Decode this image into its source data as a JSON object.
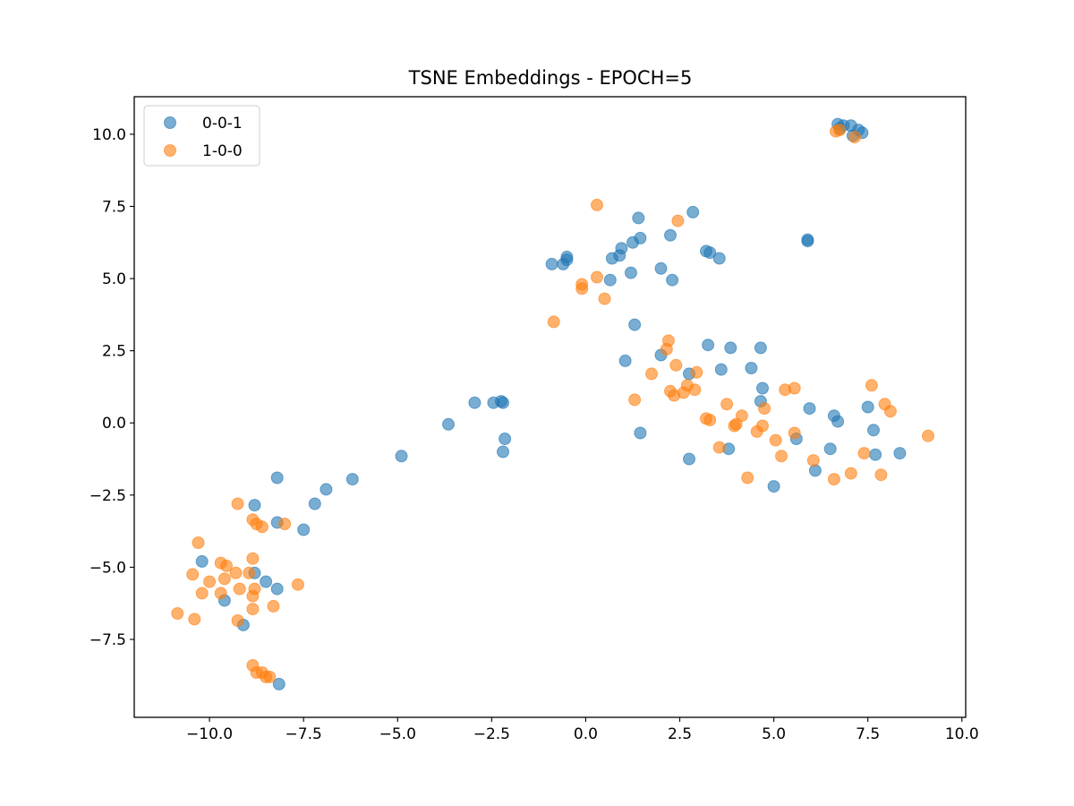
{
  "chart_data": {
    "type": "scatter",
    "title": "TSNE Embeddings - EPOCH=5",
    "xlabel": "",
    "ylabel": "",
    "xlim": [
      -12,
      10.1
    ],
    "ylim": [
      -10.2,
      11.3
    ],
    "xticks": [
      -10,
      -7.5,
      -5,
      -2.5,
      0,
      2.5,
      5,
      7.5,
      10
    ],
    "xtick_labels": [
      "−10.0",
      "−7.5",
      "−5.0",
      "−2.5",
      "0.0",
      "2.5",
      "5.0",
      "7.5",
      "10.0"
    ],
    "yticks": [
      -7.5,
      -5,
      -2.5,
      0,
      2.5,
      5,
      7.5,
      10
    ],
    "ytick_labels": [
      "−7.5",
      "−5.0",
      "−2.5",
      "0.0",
      "2.5",
      "5.0",
      "7.5",
      "10.0"
    ],
    "grid": false,
    "legend_position": "top-left",
    "series": [
      {
        "name": "0-0-1",
        "color": "#1f77b4",
        "points": [
          [
            -10.2,
            -4.8
          ],
          [
            -9.6,
            -6.15
          ],
          [
            -9.1,
            -7.0
          ],
          [
            -8.8,
            -5.2
          ],
          [
            -8.5,
            -5.5
          ],
          [
            -8.2,
            -5.75
          ],
          [
            -8.8,
            -2.85
          ],
          [
            -8.2,
            -1.9
          ],
          [
            -8.2,
            -3.45
          ],
          [
            -8.15,
            -9.05
          ],
          [
            -7.5,
            -3.7
          ],
          [
            -7.2,
            -2.8
          ],
          [
            -6.9,
            -2.3
          ],
          [
            -6.2,
            -1.95
          ],
          [
            -4.9,
            -1.15
          ],
          [
            -3.65,
            -0.05
          ],
          [
            -2.95,
            0.7
          ],
          [
            -2.45,
            0.7
          ],
          [
            -2.25,
            0.75
          ],
          [
            -2.2,
            0.7
          ],
          [
            -2.2,
            -1.0
          ],
          [
            -2.15,
            -0.55
          ],
          [
            -0.9,
            5.5
          ],
          [
            -0.6,
            5.5
          ],
          [
            -0.5,
            5.65
          ],
          [
            -0.5,
            5.75
          ],
          [
            0.65,
            4.95
          ],
          [
            0.7,
            5.7
          ],
          [
            0.9,
            5.8
          ],
          [
            0.95,
            6.05
          ],
          [
            1.2,
            5.2
          ],
          [
            1.25,
            6.25
          ],
          [
            1.4,
            7.1
          ],
          [
            1.45,
            6.4
          ],
          [
            1.3,
            3.4
          ],
          [
            1.05,
            2.15
          ],
          [
            1.45,
            -0.35
          ],
          [
            2.0,
            5.35
          ],
          [
            2.25,
            6.5
          ],
          [
            2.3,
            4.95
          ],
          [
            2.85,
            7.3
          ],
          [
            3.2,
            5.95
          ],
          [
            3.3,
            5.9
          ],
          [
            3.55,
            5.7
          ],
          [
            2.0,
            2.35
          ],
          [
            2.75,
            1.7
          ],
          [
            3.25,
            2.7
          ],
          [
            3.6,
            1.85
          ],
          [
            3.85,
            2.6
          ],
          [
            3.8,
            -0.9
          ],
          [
            2.75,
            -1.25
          ],
          [
            4.4,
            1.9
          ],
          [
            4.65,
            2.6
          ],
          [
            4.7,
            1.2
          ],
          [
            4.65,
            0.75
          ],
          [
            5.6,
            -0.55
          ],
          [
            5.0,
            -2.2
          ],
          [
            5.9,
            6.3
          ],
          [
            5.9,
            6.35
          ],
          [
            5.95,
            0.5
          ],
          [
            6.1,
            -1.65
          ],
          [
            6.5,
            -0.9
          ],
          [
            6.6,
            0.25
          ],
          [
            6.7,
            0.05
          ],
          [
            6.7,
            10.35
          ],
          [
            6.75,
            10.2
          ],
          [
            6.85,
            10.3
          ],
          [
            7.05,
            10.3
          ],
          [
            7.1,
            9.95
          ],
          [
            7.25,
            10.15
          ],
          [
            7.35,
            10.05
          ],
          [
            7.5,
            0.55
          ],
          [
            7.65,
            -0.25
          ],
          [
            7.7,
            -1.1
          ],
          [
            8.35,
            -1.05
          ]
        ]
      },
      {
        "name": "1-0-0",
        "color": "#ff7f0e",
        "points": [
          [
            -10.85,
            -6.6
          ],
          [
            -10.45,
            -5.25
          ],
          [
            -10.4,
            -6.8
          ],
          [
            -10.3,
            -4.15
          ],
          [
            -10.2,
            -5.9
          ],
          [
            -10.0,
            -5.5
          ],
          [
            -9.7,
            -4.85
          ],
          [
            -9.7,
            -5.9
          ],
          [
            -9.55,
            -4.95
          ],
          [
            -9.6,
            -5.4
          ],
          [
            -9.3,
            -5.2
          ],
          [
            -9.25,
            -2.8
          ],
          [
            -9.2,
            -5.75
          ],
          [
            -9.25,
            -6.85
          ],
          [
            -8.95,
            -5.2
          ],
          [
            -8.85,
            -3.35
          ],
          [
            -8.75,
            -3.5
          ],
          [
            -8.85,
            -4.7
          ],
          [
            -8.85,
            -6.0
          ],
          [
            -8.8,
            -5.75
          ],
          [
            -8.85,
            -6.45
          ],
          [
            -8.6,
            -3.6
          ],
          [
            -8.85,
            -8.4
          ],
          [
            -8.75,
            -8.65
          ],
          [
            -8.6,
            -8.65
          ],
          [
            -8.5,
            -8.8
          ],
          [
            -8.4,
            -8.8
          ],
          [
            -8.3,
            -6.35
          ],
          [
            -8.0,
            -3.5
          ],
          [
            -7.65,
            -5.6
          ],
          [
            -0.85,
            3.5
          ],
          [
            -0.1,
            4.8
          ],
          [
            -0.1,
            4.65
          ],
          [
            0.3,
            7.55
          ],
          [
            0.3,
            5.05
          ],
          [
            0.5,
            4.3
          ],
          [
            1.3,
            0.8
          ],
          [
            1.75,
            1.7
          ],
          [
            2.15,
            2.55
          ],
          [
            2.2,
            2.85
          ],
          [
            2.25,
            1.1
          ],
          [
            2.35,
            0.95
          ],
          [
            2.4,
            2.0
          ],
          [
            2.45,
            7.0
          ],
          [
            2.6,
            1.05
          ],
          [
            2.7,
            1.3
          ],
          [
            2.9,
            1.15
          ],
          [
            2.95,
            1.75
          ],
          [
            3.2,
            0.15
          ],
          [
            3.3,
            0.1
          ],
          [
            3.55,
            -0.85
          ],
          [
            3.75,
            0.65
          ],
          [
            3.95,
            -0.1
          ],
          [
            4.0,
            -0.05
          ],
          [
            4.15,
            0.25
          ],
          [
            4.3,
            -1.9
          ],
          [
            4.55,
            -0.3
          ],
          [
            4.7,
            -0.1
          ],
          [
            4.75,
            0.5
          ],
          [
            5.05,
            -0.6
          ],
          [
            5.2,
            -1.15
          ],
          [
            5.3,
            1.15
          ],
          [
            5.55,
            1.2
          ],
          [
            5.55,
            -0.35
          ],
          [
            6.05,
            -1.3
          ],
          [
            6.6,
            -1.95
          ],
          [
            6.65,
            10.1
          ],
          [
            6.75,
            10.15
          ],
          [
            7.15,
            9.9
          ],
          [
            7.05,
            -1.75
          ],
          [
            7.4,
            -1.05
          ],
          [
            7.6,
            1.3
          ],
          [
            7.85,
            -1.8
          ],
          [
            7.95,
            0.65
          ],
          [
            8.1,
            0.4
          ],
          [
            9.1,
            -0.45
          ]
        ]
      }
    ]
  }
}
